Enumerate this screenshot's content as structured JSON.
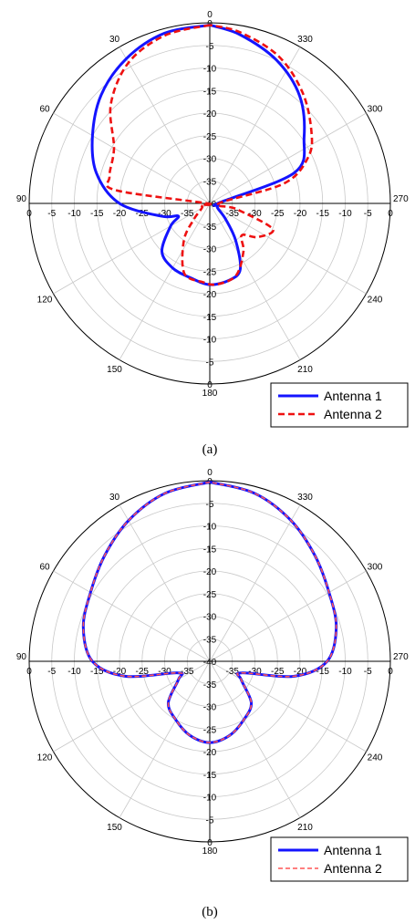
{
  "chart_data": [
    {
      "type": "polar",
      "panel_label": "(a)",
      "r_range": [
        -40,
        0
      ],
      "r_ticks": [
        0,
        -5,
        -10,
        -15,
        -20,
        -25,
        -30,
        -35,
        -40
      ],
      "angle_ticks": [
        0,
        30,
        60,
        90,
        120,
        150,
        180,
        210,
        240,
        270,
        300,
        330
      ],
      "angle_direction": "counterclockwise",
      "zero_direction": "top",
      "grid": true,
      "legend_position": "bottom-right",
      "series": [
        {
          "name": "Antenna 1",
          "color": "#1414ff",
          "style": "solid",
          "points": [
            [
              0,
              -0.5
            ],
            [
              15,
              -1
            ],
            [
              30,
              -3
            ],
            [
              45,
              -6
            ],
            [
              60,
              -10
            ],
            [
              75,
              -14
            ],
            [
              90,
              -20
            ],
            [
              105,
              -29
            ],
            [
              112,
              -32.5
            ],
            [
              120,
              -30
            ],
            [
              135,
              -25
            ],
            [
              150,
              -23.5
            ],
            [
              165,
              -23
            ],
            [
              180,
              -22
            ],
            [
              195,
              -22.5
            ],
            [
              205,
              -24
            ],
            [
              215,
              -30
            ],
            [
              225,
              -35
            ],
            [
              240,
              -38
            ],
            [
              260,
              -38
            ],
            [
              275,
              -37.8
            ],
            [
              290,
              -20
            ],
            [
              305,
              -14.5
            ],
            [
              320,
              -9
            ],
            [
              335,
              -5
            ],
            [
              350,
              -2
            ],
            [
              360,
              -0.5
            ]
          ]
        },
        {
          "name": "Antenna 2",
          "color": "#ee1111",
          "style": "dashed",
          "points": [
            [
              0,
              -0.5
            ],
            [
              15,
              -1.5
            ],
            [
              30,
              -4
            ],
            [
              45,
              -9
            ],
            [
              60,
              -15.5
            ],
            [
              75,
              -17
            ],
            [
              82,
              -19
            ],
            [
              90,
              -39.5
            ],
            [
              100,
              -38
            ],
            [
              120,
              -38
            ],
            [
              135,
              -35
            ],
            [
              145,
              -30
            ],
            [
              160,
              -23.5
            ],
            [
              175,
              -22.5
            ],
            [
              185,
              -22
            ],
            [
              200,
              -23
            ],
            [
              215,
              -27
            ],
            [
              225,
              -30
            ],
            [
              235,
              -27
            ],
            [
              248,
              -25
            ],
            [
              258,
              -34
            ],
            [
              270,
              -38
            ],
            [
              285,
              -23
            ],
            [
              295,
              -16
            ],
            [
              305,
              -12.5
            ],
            [
              320,
              -8
            ],
            [
              335,
              -4
            ],
            [
              350,
              -1.5
            ],
            [
              360,
              -0.5
            ]
          ]
        }
      ]
    },
    {
      "type": "polar",
      "panel_label": "(b)",
      "r_range": [
        -40,
        0
      ],
      "r_ticks": [
        0,
        -5,
        -10,
        -15,
        -20,
        -25,
        -30,
        -35,
        -40
      ],
      "angle_ticks": [
        0,
        30,
        60,
        90,
        120,
        150,
        180,
        210,
        240,
        270,
        300,
        330
      ],
      "angle_direction": "counterclockwise",
      "zero_direction": "top",
      "grid": true,
      "legend_position": "bottom-right",
      "series": [
        {
          "name": "Antenna 1",
          "color": "#1414ff",
          "style": "solid",
          "points": [
            [
              0,
              -0.3
            ],
            [
              15,
              -1.5
            ],
            [
              30,
              -4
            ],
            [
              45,
              -7
            ],
            [
              60,
              -9.5
            ],
            [
              75,
              -11
            ],
            [
              90,
              -14
            ],
            [
              100,
              -21
            ],
            [
              110,
              -32.5
            ],
            [
              120,
              -32
            ],
            [
              135,
              -27
            ],
            [
              150,
              -25
            ],
            [
              165,
              -23
            ],
            [
              180,
              -22
            ],
            [
              195,
              -23
            ],
            [
              210,
              -25
            ],
            [
              225,
              -27
            ],
            [
              240,
              -32
            ],
            [
              250,
              -32.5
            ],
            [
              260,
              -21
            ],
            [
              270,
              -14
            ],
            [
              285,
              -11
            ],
            [
              300,
              -9.5
            ],
            [
              315,
              -7
            ],
            [
              330,
              -4
            ],
            [
              345,
              -1.5
            ],
            [
              360,
              -0.3
            ]
          ]
        },
        {
          "name": "Antenna 2",
          "color": "#ff5555",
          "style": "dashed",
          "points": [
            [
              0,
              -0.3
            ],
            [
              15,
              -1.5
            ],
            [
              30,
              -4
            ],
            [
              45,
              -7
            ],
            [
              60,
              -9.5
            ],
            [
              75,
              -11
            ],
            [
              90,
              -14
            ],
            [
              100,
              -21
            ],
            [
              110,
              -32.5
            ],
            [
              120,
              -32
            ],
            [
              135,
              -27
            ],
            [
              150,
              -25
            ],
            [
              165,
              -23
            ],
            [
              180,
              -22
            ],
            [
              195,
              -23
            ],
            [
              210,
              -25
            ],
            [
              225,
              -27
            ],
            [
              240,
              -32
            ],
            [
              250,
              -32.5
            ],
            [
              260,
              -21
            ],
            [
              270,
              -14
            ],
            [
              285,
              -11
            ],
            [
              300,
              -9.5
            ],
            [
              315,
              -7
            ],
            [
              330,
              -4
            ],
            [
              345,
              -1.5
            ],
            [
              360,
              -0.3
            ]
          ]
        }
      ]
    }
  ]
}
